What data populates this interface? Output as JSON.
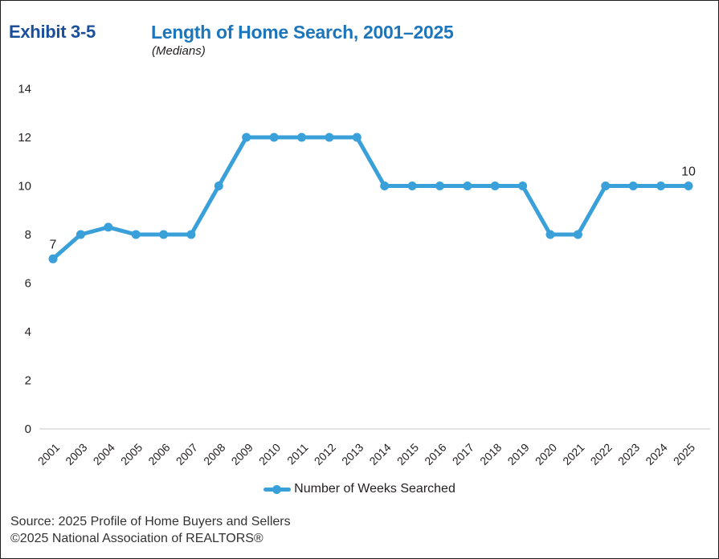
{
  "header": {
    "exhibit_label": "Exhibit 3-5",
    "title": "Length of Home Search, 2001–2025",
    "subtitle": "(Medians)"
  },
  "chart_data": {
    "type": "line",
    "title": "Length of Home Search, 2001–2025",
    "subtitle": "(Medians)",
    "categories": [
      "2001",
      "2003",
      "2004",
      "2005",
      "2006",
      "2007",
      "2008",
      "2009",
      "2010",
      "2011",
      "2012",
      "2013",
      "2014",
      "2015",
      "2016",
      "2017",
      "2018",
      "2019",
      "2020",
      "2021",
      "2022",
      "2023",
      "2024",
      "2025"
    ],
    "series": [
      {
        "name": "Number of Weeks Searched",
        "values": [
          7,
          8,
          8.3,
          8,
          8,
          8,
          10,
          12,
          12,
          12,
          12,
          12,
          10,
          10,
          10,
          10,
          10,
          10,
          8,
          8,
          10,
          10,
          10,
          10
        ]
      }
    ],
    "point_labels": [
      {
        "category": "2001",
        "text": "7"
      },
      {
        "category": "2025",
        "text": "10"
      }
    ],
    "xlabel": "",
    "ylabel": "",
    "ylim": [
      0,
      14
    ],
    "yticks": [
      0,
      2,
      4,
      6,
      8,
      10,
      12,
      14
    ],
    "grid": false,
    "legend_position": "bottom",
    "line_color": "#39A0D9",
    "axis_line_color": "#D9D9D9",
    "tick_text_color": "#231F20"
  },
  "legend": {
    "label": "Number of Weeks Searched"
  },
  "footer": {
    "source_line": "Source: 2025 Profile of Home Buyers and Sellers",
    "copyright_line": "©2025 National Association of REALTORS®"
  },
  "colors": {
    "exhibit_label": "#1B4F9B",
    "title": "#1D76BC",
    "text": "#231F20",
    "footer_text": "#333333",
    "border": "#1F1F1F"
  }
}
